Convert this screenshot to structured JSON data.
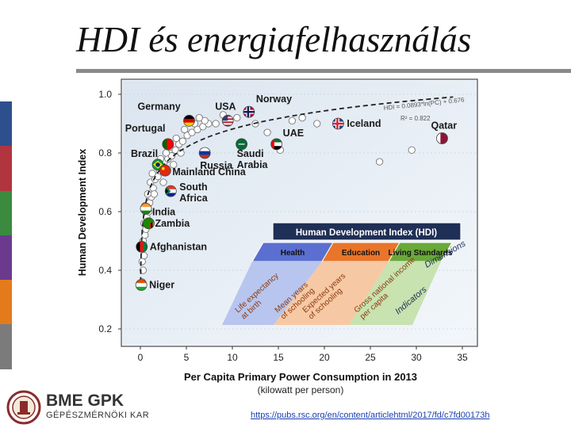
{
  "slide": {
    "title": "HDI és energiafelhasználás",
    "stripe_colors": [
      "#2d4f8e",
      "#b1343f",
      "#3a8a3f",
      "#6b3a8e",
      "#e37b1d",
      "#7b7b7b"
    ],
    "source_link": "https://pubs.rsc.org/en/content/articlehtml/2017/fd/c7fd00173h",
    "logo": {
      "name": "BME GPK",
      "subtitle": "GÉPÉSZMÉRNÖKI KAR"
    }
  },
  "chart_data": {
    "type": "scatter",
    "title": "",
    "xlabel": "Per Capita Primary Power Consumption in 2013",
    "xlabel_sub": "(kilowatt per person)",
    "ylabel": "Human Development Index",
    "xlim": [
      -2,
      35
    ],
    "ylim": [
      0.2,
      1.0
    ],
    "x_ticks": [
      "0",
      "5",
      "10",
      "15",
      "20",
      "25",
      "30",
      "35"
    ],
    "y_ticks": [
      "0.2",
      "0.4",
      "0.6",
      "0.8",
      "1.0"
    ],
    "fit_equation": "HDI = 0.0893*ln(PC) + 0.676",
    "fit_r2": "R² = 0.822",
    "fit": {
      "a": 0.0893,
      "b": 0.676
    },
    "countries": [
      {
        "name": "Germany",
        "x": 5.3,
        "y": 0.91,
        "label": "Germany",
        "flag": "germany"
      },
      {
        "name": "USA",
        "x": 9.5,
        "y": 0.91,
        "label": "USA",
        "flag": "usa"
      },
      {
        "name": "Norway",
        "x": 11.8,
        "y": 0.94,
        "label": "Norway",
        "flag": "norway"
      },
      {
        "name": "Iceland",
        "x": 21.5,
        "y": 0.9,
        "label": "Iceland",
        "flag": "iceland"
      },
      {
        "name": "Qatar",
        "x": 32.8,
        "y": 0.85,
        "label": "Qatar",
        "flag": "qatar"
      },
      {
        "name": "Portugal",
        "x": 3.0,
        "y": 0.83,
        "label": "Portugal",
        "flag": "portugal"
      },
      {
        "name": "UAE",
        "x": 14.8,
        "y": 0.83,
        "label": "UAE",
        "flag": "uae"
      },
      {
        "name": "Brazil",
        "x": 1.9,
        "y": 0.76,
        "label": "Brazil",
        "flag": "brazil"
      },
      {
        "name": "Russia",
        "x": 7.0,
        "y": 0.8,
        "label": "Russia",
        "flag": "russia"
      },
      {
        "name": "Saudi Arabia",
        "x": 11.0,
        "y": 0.83,
        "label": "Saudi Arabia",
        "flag": "saudi"
      },
      {
        "name": "Mainland China",
        "x": 2.7,
        "y": 0.74,
        "label": "Mainland China",
        "flag": "china"
      },
      {
        "name": "South Africa",
        "x": 3.3,
        "y": 0.67,
        "label": "South Africa",
        "flag": "southafrica"
      },
      {
        "name": "India",
        "x": 0.6,
        "y": 0.61,
        "label": "India",
        "flag": "india"
      },
      {
        "name": "Zambia",
        "x": 0.9,
        "y": 0.56,
        "label": "Zambia",
        "flag": "zambia"
      },
      {
        "name": "Afghanistan",
        "x": 0.15,
        "y": 0.48,
        "label": "Afghanistan",
        "flag": "afghanistan"
      },
      {
        "name": "Niger",
        "x": 0.1,
        "y": 0.35,
        "label": "Niger",
        "flag": "niger"
      }
    ],
    "other_points": [
      [
        0.2,
        0.36
      ],
      [
        0.3,
        0.4
      ],
      [
        0.2,
        0.43
      ],
      [
        0.4,
        0.45
      ],
      [
        0.3,
        0.5
      ],
      [
        0.5,
        0.52
      ],
      [
        0.6,
        0.54
      ],
      [
        0.4,
        0.56
      ],
      [
        0.7,
        0.58
      ],
      [
        0.9,
        0.6
      ],
      [
        0.5,
        0.62
      ],
      [
        1.0,
        0.63
      ],
      [
        1.2,
        0.65
      ],
      [
        0.8,
        0.66
      ],
      [
        1.4,
        0.68
      ],
      [
        1.1,
        0.7
      ],
      [
        1.6,
        0.71
      ],
      [
        1.9,
        0.72
      ],
      [
        1.3,
        0.73
      ],
      [
        2.1,
        0.74
      ],
      [
        2.4,
        0.75
      ],
      [
        1.7,
        0.76
      ],
      [
        2.6,
        0.77
      ],
      [
        2.2,
        0.78
      ],
      [
        3.0,
        0.78
      ],
      [
        3.4,
        0.79
      ],
      [
        2.8,
        0.8
      ],
      [
        3.8,
        0.81
      ],
      [
        3.2,
        0.82
      ],
      [
        4.2,
        0.83
      ],
      [
        4.6,
        0.84
      ],
      [
        3.9,
        0.85
      ],
      [
        5.1,
        0.86
      ],
      [
        5.6,
        0.87
      ],
      [
        4.8,
        0.88
      ],
      [
        6.2,
        0.88
      ],
      [
        6.8,
        0.89
      ],
      [
        7.4,
        0.9
      ],
      [
        5.9,
        0.9
      ],
      [
        8.2,
        0.9
      ],
      [
        7.0,
        0.91
      ],
      [
        6.4,
        0.92
      ],
      [
        9.0,
        0.93
      ],
      [
        10.5,
        0.92
      ],
      [
        12.5,
        0.9
      ],
      [
        13.8,
        0.87
      ],
      [
        15.2,
        0.81
      ],
      [
        16.5,
        0.91
      ],
      [
        17.6,
        0.92
      ],
      [
        19.2,
        0.9
      ],
      [
        26.0,
        0.77
      ],
      [
        29.5,
        0.81
      ],
      [
        2.5,
        0.7
      ],
      [
        1.5,
        0.66
      ],
      [
        3.6,
        0.76
      ],
      [
        4.4,
        0.8
      ]
    ],
    "hdi_box": {
      "title": "Human Development Index (HDI)",
      "components": [
        "Health",
        "Education",
        "Living Standards"
      ],
      "dimensions_label": "Dimensions",
      "indicators": [
        "Life expectancy at birth",
        "Mean years of schooling",
        "Expected years of schooling",
        "Gross national income per capita"
      ],
      "indicators_label": "Indicators",
      "colors": {
        "health": "#5a6fd0",
        "education": "#e8752a",
        "living": "#6aa83a"
      }
    }
  }
}
